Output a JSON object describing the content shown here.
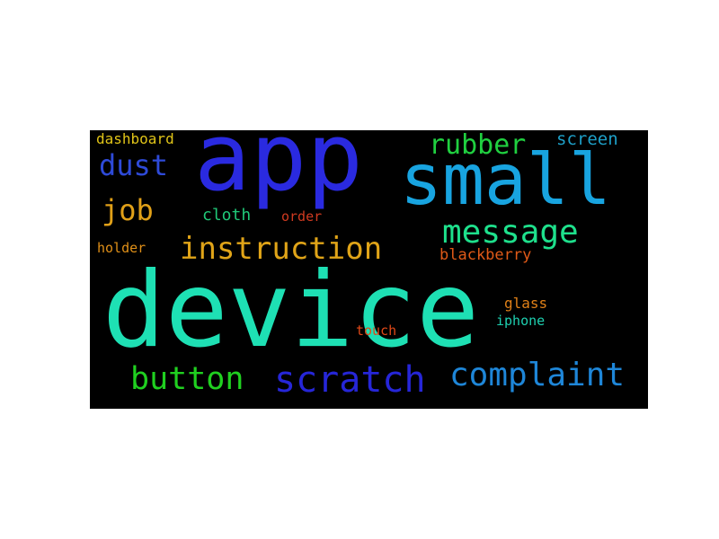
{
  "background_color": "#000000",
  "words": [
    {
      "text": "device",
      "color": "#1ee0b4"
    },
    {
      "text": "app",
      "color": "#2a2ae0"
    },
    {
      "text": "small",
      "color": "#18a4e0"
    },
    {
      "text": "scratch",
      "color": "#2626d8"
    },
    {
      "text": "complaint",
      "color": "#1e86d8"
    },
    {
      "text": "instruction",
      "color": "#e0a418"
    },
    {
      "text": "message",
      "color": "#1ee08c"
    },
    {
      "text": "button",
      "color": "#20d020"
    },
    {
      "text": "rubber",
      "color": "#20d040"
    },
    {
      "text": "dust",
      "color": "#2e4ad8"
    },
    {
      "text": "job",
      "color": "#e0a018"
    },
    {
      "text": "cloth",
      "color": "#20c878"
    },
    {
      "text": "order",
      "color": "#d03a20"
    },
    {
      "text": "screen",
      "color": "#1ea0c8"
    },
    {
      "text": "dashboard",
      "color": "#e0c418"
    },
    {
      "text": "holder",
      "color": "#e09018"
    },
    {
      "text": "blackberry",
      "color": "#e05a18"
    },
    {
      "text": "glass",
      "color": "#e08018"
    },
    {
      "text": "iphone",
      "color": "#1ed0b0"
    },
    {
      "text": "touch",
      "color": "#e04818"
    }
  ]
}
